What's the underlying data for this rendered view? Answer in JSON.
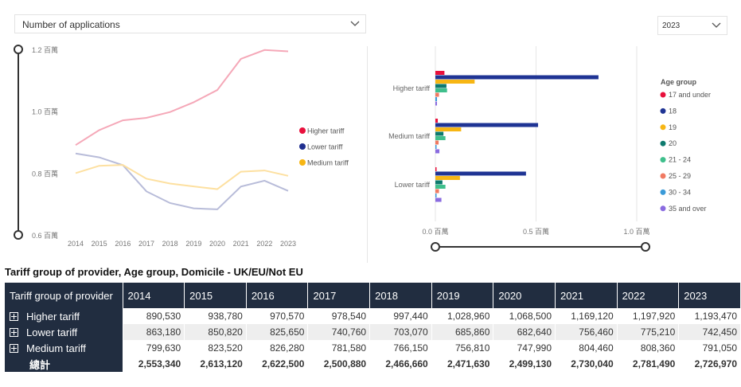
{
  "measure_dropdown": {
    "value": "Number of applications"
  },
  "year_dropdown": {
    "value": "2023"
  },
  "chart_data": [
    {
      "type": "line",
      "x": [
        "2014",
        "2015",
        "2016",
        "2017",
        "2018",
        "2019",
        "2020",
        "2021",
        "2022",
        "2023"
      ],
      "ytick_labels": [
        "1.2 百萬",
        "1.0 百萬",
        "0.8 百萬",
        "0.6 百萬"
      ],
      "ylim": [
        0.6,
        1.2
      ],
      "y_unit": "百萬",
      "grid": false,
      "legend_position": "right",
      "series": [
        {
          "name": "Higher tariff",
          "color": "#f5a8b8",
          "legend_color": "#e8103c",
          "values": [
            0.89053,
            0.93878,
            0.97057,
            0.97854,
            0.99744,
            1.02896,
            1.0685,
            1.16912,
            1.19792,
            1.19347
          ]
        },
        {
          "name": "Lower tariff",
          "color": "#b8bcd9",
          "legend_color": "#1f2f8f",
          "values": [
            0.86318,
            0.85082,
            0.82565,
            0.74076,
            0.70307,
            0.68586,
            0.68264,
            0.75646,
            0.77521,
            0.74245
          ]
        },
        {
          "name": "Medium tariff",
          "color": "#fde0a0",
          "legend_color": "#f7b614",
          "values": [
            0.79963,
            0.82352,
            0.82628,
            0.78158,
            0.76615,
            0.75681,
            0.74799,
            0.80446,
            0.80836,
            0.79105
          ]
        }
      ]
    },
    {
      "type": "bar",
      "orientation": "horizontal",
      "categories": [
        "Higher tariff",
        "Medium tariff",
        "Lower tariff"
      ],
      "xtick_labels": [
        "0.0 百萬",
        "0.5 百萬",
        "1.0 百萬"
      ],
      "xlim": [
        0,
        1.0
      ],
      "x_unit": "百萬",
      "legend_title": "Age group",
      "legend_position": "right",
      "series": [
        {
          "name": "17 and under",
          "color": "#e8103c",
          "values": [
            0.045,
            0.012,
            0.006
          ]
        },
        {
          "name": "18",
          "color": "#1f3494",
          "values": [
            0.81,
            0.51,
            0.45
          ]
        },
        {
          "name": "19",
          "color": "#f7b614",
          "values": [
            0.195,
            0.128,
            0.122
          ]
        },
        {
          "name": "20",
          "color": "#0d7a6e",
          "values": [
            0.055,
            0.04,
            0.035
          ]
        },
        {
          "name": "21 - 24",
          "color": "#3fbf8c",
          "values": [
            0.058,
            0.05,
            0.05
          ]
        },
        {
          "name": "25 - 29",
          "color": "#f07a62",
          "values": [
            0.018,
            0.016,
            0.018
          ]
        },
        {
          "name": "30 - 34",
          "color": "#3a9ad8",
          "values": [
            0.008,
            0.006,
            0.006
          ]
        },
        {
          "name": "35 and over",
          "color": "#8a6be0",
          "values": [
            0.008,
            0.02,
            0.03
          ]
        }
      ]
    }
  ],
  "table": {
    "title": "Tariff group of provider, Age group, Domicile - UK/EU/Not EU",
    "header_color": "#212d40",
    "columns": [
      "Tariff group of provider",
      "2014",
      "2015",
      "2016",
      "2017",
      "2018",
      "2019",
      "2020",
      "2021",
      "2022",
      "2023"
    ],
    "rows": [
      {
        "label": "Higher tariff",
        "values": [
          "890,530",
          "938,780",
          "970,570",
          "978,540",
          "997,440",
          "1,028,960",
          "1,068,500",
          "1,169,120",
          "1,197,920",
          "1,193,470"
        ]
      },
      {
        "label": "Lower tariff",
        "values": [
          "863,180",
          "850,820",
          "825,650",
          "740,760",
          "703,070",
          "685,860",
          "682,640",
          "756,460",
          "775,210",
          "742,450"
        ]
      },
      {
        "label": "Medium tariff",
        "values": [
          "799,630",
          "823,520",
          "826,280",
          "781,580",
          "766,150",
          "756,810",
          "747,990",
          "804,460",
          "808,360",
          "791,050"
        ]
      }
    ],
    "total": {
      "label": "總計",
      "values": [
        "2,553,340",
        "2,613,120",
        "2,622,500",
        "2,500,880",
        "2,466,660",
        "2,471,630",
        "2,499,130",
        "2,730,040",
        "2,781,490",
        "2,726,970"
      ]
    }
  }
}
